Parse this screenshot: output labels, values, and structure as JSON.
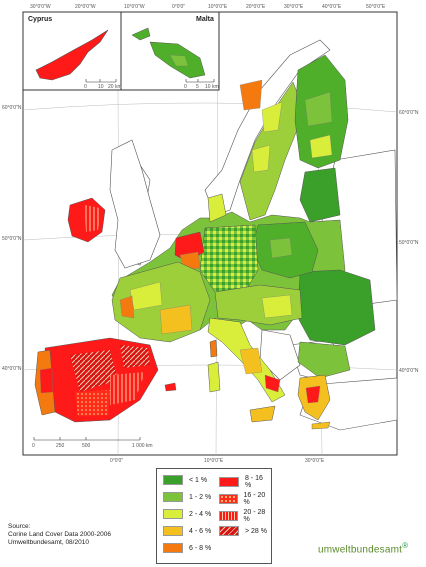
{
  "insets": {
    "cyprus": {
      "title": "Cyprus",
      "scale": [
        "0",
        "10",
        "20 km"
      ]
    },
    "malta": {
      "title": "Malta",
      "scale": [
        "0",
        "5",
        "10 km"
      ]
    }
  },
  "graticule": {
    "top": [
      "30°0'0\"W",
      "20°0'0\"W",
      "10°0'0\"W",
      "0°0'0\"",
      "10°0'0\"E",
      "20°0'0\"E",
      "30°0'0\"E",
      "40°0'0\"E",
      "50°0'0\"E"
    ],
    "bottom": [
      "0°0'0\"",
      "10°0'0\"E",
      "30°0'0\"E"
    ],
    "left": [
      "60°0'0\"N",
      "50°0'0\"N",
      "40°0'0\"N"
    ],
    "right": [
      "60°0'0\"N",
      "50°0'0\"N",
      "40°0'0\"N"
    ]
  },
  "scale_bar": [
    "0",
    "250",
    "500",
    "1 000 km"
  ],
  "legend": {
    "items": [
      {
        "label": "< 1 %",
        "color": "#3aa02a",
        "pattern": "solid"
      },
      {
        "label": "8 - 16 %",
        "color": "#ff1a1a",
        "pattern": "solid"
      },
      {
        "label": "1 - 2 %",
        "color": "#7cc23a",
        "pattern": "solid"
      },
      {
        "label": "16 - 20 %",
        "color": "#ff2a1a",
        "pattern": "dots"
      },
      {
        "label": "2 - 4 %",
        "color": "#d9ee3a",
        "pattern": "solid"
      },
      {
        "label": "20 - 28 %",
        "color": "#ff1a1a",
        "pattern": "vertical"
      },
      {
        "label": "4 - 6 %",
        "color": "#f4c020",
        "pattern": "solid"
      },
      {
        "label": "> 28 %",
        "color": "#ff1a1a",
        "pattern": "diagonal"
      },
      {
        "label": "6 - 8 %",
        "color": "#f47a10",
        "pattern": "solid"
      }
    ]
  },
  "source": {
    "line1": "Source:",
    "line2": "Corine Land Cover Data 2000-2006",
    "line3": "Umweltbundesamt, 08/2010"
  },
  "logo": {
    "text": "umweltbundesamt",
    "mark": "®"
  },
  "colors": {
    "water": "#ffffff",
    "border": "#444444",
    "non_eu": "#ffffff"
  }
}
